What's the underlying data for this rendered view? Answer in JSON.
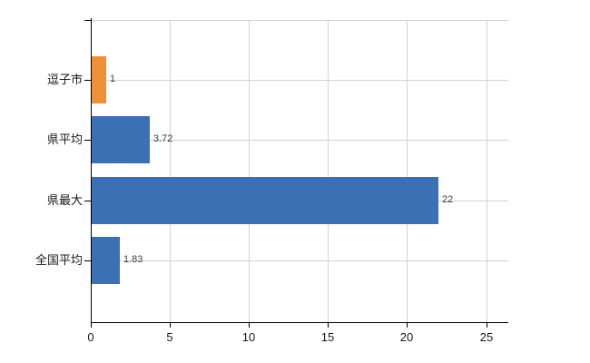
{
  "chart_data": {
    "type": "bar",
    "orientation": "horizontal",
    "title": "",
    "xlabel": "",
    "ylabel": "",
    "categories": [
      "逗子市",
      "県平均",
      "県最大",
      "全国平均"
    ],
    "values": [
      1,
      3.72,
      22,
      1.83
    ],
    "value_labels": [
      "1",
      "3.72",
      "22",
      "1.83"
    ],
    "bar_colors": [
      "#ef9036",
      "#3c70b4",
      "#3c70b4",
      "#3c70b4"
    ],
    "x_ticks": [
      "0",
      "5",
      "10",
      "15",
      "20",
      "25"
    ],
    "x_tick_values": [
      0,
      5,
      10,
      15,
      20,
      25
    ],
    "x_axis_range": [
      0,
      26.4
    ],
    "grid": true,
    "legend_position": "none",
    "colors": {
      "highlight_bar": "#ef9036",
      "default_bar": "#3c70b4",
      "gridline": "#d5d2ce",
      "axis": "#000000",
      "tick_text": "#1a1a1a",
      "category_text": "#1a1a1a",
      "value_text": "#3f3f3f",
      "background": "#ffffff"
    }
  }
}
